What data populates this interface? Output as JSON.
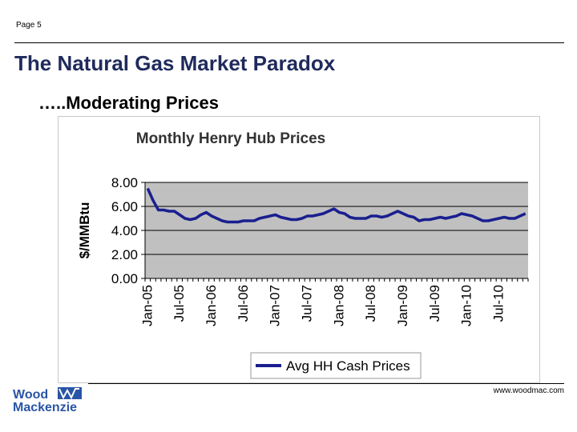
{
  "page": {
    "page_number": "Page 5",
    "title": "The Natural Gas Market Paradox",
    "subtitle": "…..Moderating Prices",
    "footer_url": "www.woodmac.com",
    "logo": {
      "line1": "Wood",
      "line2": "Mackenzie",
      "icon": "wood-mackenzie-w-logo"
    },
    "colors": {
      "title": "#1f2a5c",
      "plot_bg": "#c0c0c0",
      "series_line": "#1a1f8f",
      "logo_blue": "#2a55a6"
    }
  },
  "chart_data": {
    "type": "line",
    "title": "Monthly Henry Hub Prices",
    "ylabel": "$/MMBtu",
    "xlabel": "",
    "ylim": [
      0,
      8
    ],
    "yticks": [
      "0.00",
      "2.00",
      "4.00",
      "6.00",
      "8.00"
    ],
    "xtick_labels": [
      "Jan-05",
      "Jul-05",
      "Jan-06",
      "Jul-06",
      "Jan-07",
      "Jul-07",
      "Jan-08",
      "Jul-08",
      "Jan-09",
      "Jul-09",
      "Jan-10",
      "Jul-10"
    ],
    "xtick_step_months": 6,
    "grid": "horizontal",
    "legend": "bottom",
    "series": [
      {
        "name": "Avg HH Cash Prices",
        "values": [
          7.5,
          6.5,
          5.7,
          5.7,
          5.6,
          5.6,
          5.3,
          5.0,
          4.9,
          5.0,
          5.3,
          5.5,
          5.2,
          5.0,
          4.8,
          4.7,
          4.7,
          4.7,
          4.8,
          4.8,
          4.8,
          5.0,
          5.1,
          5.2,
          5.3,
          5.1,
          5.0,
          4.9,
          4.9,
          5.0,
          5.2,
          5.2,
          5.3,
          5.4,
          5.6,
          5.8,
          5.5,
          5.4,
          5.1,
          5.0,
          5.0,
          5.0,
          5.2,
          5.2,
          5.1,
          5.2,
          5.4,
          5.6,
          5.4,
          5.2,
          5.1,
          4.8,
          4.9,
          4.9,
          5.0,
          5.1,
          5.0,
          5.1,
          5.2,
          5.4,
          5.3,
          5.2,
          5.0,
          4.8,
          4.8,
          4.9,
          5.0,
          5.1,
          5.0,
          5.0,
          5.2,
          5.4
        ]
      }
    ]
  }
}
